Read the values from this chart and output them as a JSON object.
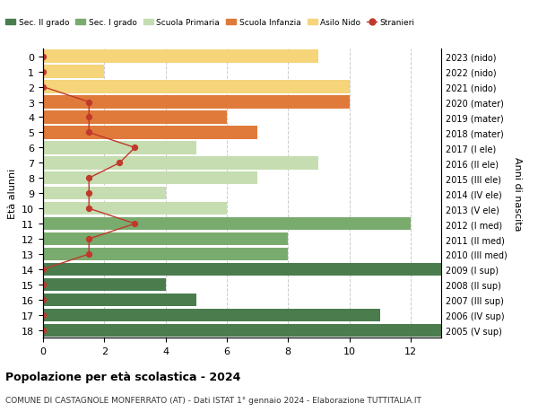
{
  "ages": [
    0,
    1,
    2,
    3,
    4,
    5,
    6,
    7,
    8,
    9,
    10,
    11,
    12,
    13,
    14,
    15,
    16,
    17,
    18
  ],
  "years": [
    "2023 (nido)",
    "2022 (nido)",
    "2021 (nido)",
    "2020 (mater)",
    "2019 (mater)",
    "2018 (mater)",
    "2017 (I ele)",
    "2016 (II ele)",
    "2015 (III ele)",
    "2014 (IV ele)",
    "2013 (V ele)",
    "2012 (I med)",
    "2011 (II med)",
    "2010 (III med)",
    "2009 (I sup)",
    "2008 (II sup)",
    "2007 (III sup)",
    "2006 (IV sup)",
    "2005 (V sup)"
  ],
  "bar_values": [
    9,
    2,
    10,
    10,
    6,
    7,
    5,
    9,
    7,
    4,
    6,
    12,
    8,
    8,
    13,
    4,
    5,
    11,
    13
  ],
  "bar_colors": [
    "#f5d47a",
    "#f5d47a",
    "#f5d47a",
    "#e07a3a",
    "#e07a3a",
    "#e07a3a",
    "#c5ddb0",
    "#c5ddb0",
    "#c5ddb0",
    "#c5ddb0",
    "#c5ddb0",
    "#7aab6e",
    "#7aab6e",
    "#7aab6e",
    "#4a7c4e",
    "#4a7c4e",
    "#4a7c4e",
    "#4a7c4e",
    "#4a7c4e"
  ],
  "stranieri_x": [
    0,
    0,
    0,
    1.5,
    1.5,
    1.5,
    3,
    2.5,
    1.5,
    1.5,
    1.5,
    3,
    1.5,
    1.5,
    0,
    0,
    0,
    0,
    0
  ],
  "title_bold": "Popolazione per età scolastica - 2024",
  "subtitle": "COMUNE DI CASTAGNOLE MONFERRATO (AT) - Dati ISTAT 1° gennaio 2024 - Elaborazione TUTTITALIA.IT",
  "ylabel": "Età alunni",
  "ylabel2": "Anni di nascita",
  "xlim": [
    0,
    13
  ],
  "legend_labels": [
    "Sec. II grado",
    "Sec. I grado",
    "Scuola Primaria",
    "Scuola Infanzia",
    "Asilo Nido",
    "Stranieri"
  ],
  "legend_colors": [
    "#4a7c4e",
    "#7aab6e",
    "#c5ddb0",
    "#e07a3a",
    "#f5d47a",
    "#c0392b"
  ],
  "stranieri_color": "#c0392b",
  "bg_color": "#ffffff",
  "grid_color": "#cccccc"
}
